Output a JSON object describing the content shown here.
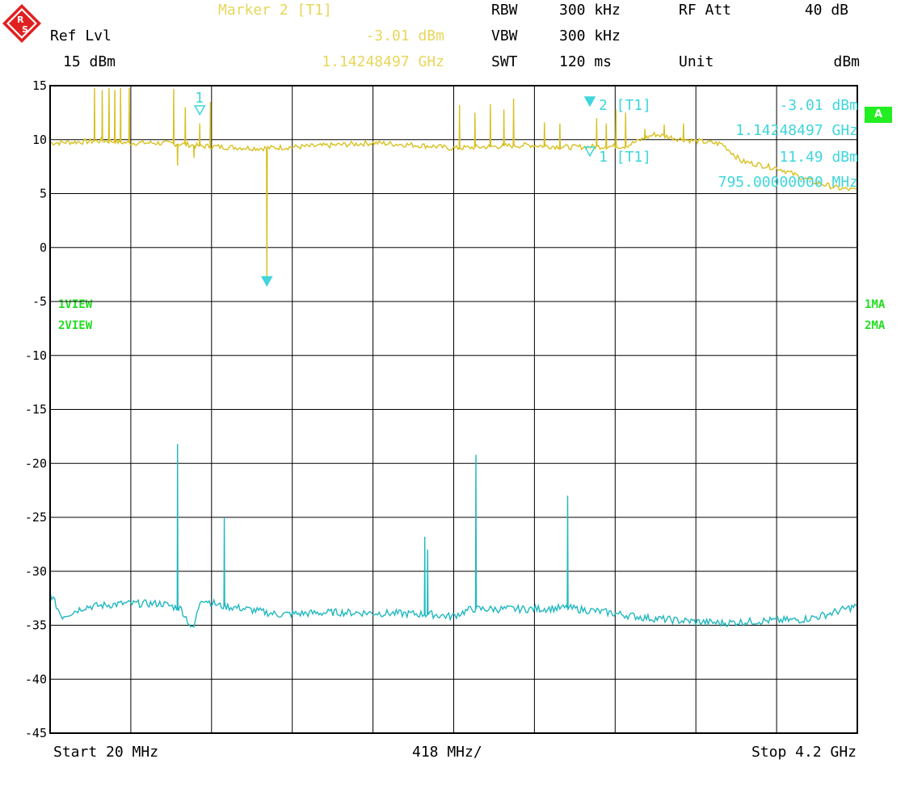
{
  "header": {
    "marker_title": "Marker 2 [T1]",
    "marker_level": "-3.01 dBm",
    "marker_freq": "1.14248497 GHz",
    "ref_lvl_label": "Ref Lvl",
    "ref_lvl_value": "15 dBm",
    "rbw_label": "RBW",
    "rbw_value": "300 kHz",
    "vbw_label": "VBW",
    "vbw_value": "300 kHz",
    "swt_label": "SWT",
    "swt_value": "120 ms",
    "rfatt_label": "RF Att",
    "rfatt_value": "40 dB",
    "unit_label": "Unit",
    "unit_value": "dBm"
  },
  "footer": {
    "start": "Start 20 MHz",
    "span_per_div": "418 MHz/",
    "stop": "Stop 4.2 GHz"
  },
  "side": {
    "trace1_view": "1VIEW",
    "trace2_view": "2VIEW",
    "trace1_mode": "1MA",
    "trace2_mode": "2MA",
    "badge": "A"
  },
  "markers": {
    "m2_label": "2 [T1]",
    "m2_level": "-3.01 dBm",
    "m2_freq": "1.14248497 GHz",
    "m1_label": "1 [T1]",
    "m1_level": "11.49 dBm",
    "m1_freq": "795.00000000 MHz",
    "m1_flag": "1",
    "m2_flag": "2"
  },
  "colors": {
    "trace1": "#d8c020",
    "trace2": "#20b8c0",
    "marker": "#3fd6dc",
    "header_marker": "#e8d65a",
    "badge": "#22ee22"
  },
  "logo_icon": "rohde-schwarz-logo",
  "chart_data": {
    "type": "line",
    "x_unit": "MHz",
    "y_unit": "dBm",
    "xlim": [
      20,
      4200
    ],
    "ylim": [
      -45,
      15
    ],
    "y_ticks": [
      15,
      10,
      5,
      0,
      -5,
      -10,
      -15,
      -20,
      -25,
      -30,
      -35,
      -40,
      -45
    ],
    "x_divisions": 10,
    "grid": true,
    "series": [
      {
        "name": "1VIEW",
        "baseline": [
          [
            20,
            9.7
          ],
          [
            180,
            9.8
          ],
          [
            300,
            9.9
          ],
          [
            420,
            9.7
          ],
          [
            560,
            9.7
          ],
          [
            700,
            9.6
          ],
          [
            800,
            9.4
          ],
          [
            1100,
            9.2
          ],
          [
            1400,
            9.4
          ],
          [
            1700,
            9.7
          ],
          [
            2000,
            9.4
          ],
          [
            2100,
            9.2
          ],
          [
            2500,
            9.5
          ],
          [
            2700,
            9.3
          ],
          [
            3000,
            9.4
          ],
          [
            3150,
            10.5
          ],
          [
            3300,
            10.0
          ],
          [
            3500,
            9.6
          ],
          [
            3600,
            8.0
          ],
          [
            3800,
            7.3
          ],
          [
            3950,
            6.2
          ],
          [
            4100,
            5.5
          ],
          [
            4200,
            5.3
          ]
        ],
        "spikes": [
          [
            250,
            14.8
          ],
          [
            290,
            14.6
          ],
          [
            325,
            14.8
          ],
          [
            355,
            14.6
          ],
          [
            385,
            14.8
          ],
          [
            430,
            14.8
          ],
          [
            660,
            14.7
          ],
          [
            720,
            13.0
          ],
          [
            795,
            11.5
          ],
          [
            850,
            13.5
          ],
          [
            2140,
            13.2
          ],
          [
            2220,
            12.5
          ],
          [
            2300,
            13.3
          ],
          [
            2370,
            12.8
          ],
          [
            2420,
            13.8
          ],
          [
            2580,
            11.6
          ],
          [
            2660,
            11.5
          ],
          [
            2850,
            12.0
          ],
          [
            2900,
            11.5
          ],
          [
            2950,
            12.8
          ],
          [
            3000,
            12.5
          ],
          [
            3100,
            11.0
          ],
          [
            3200,
            11.4
          ],
          [
            3300,
            11.5
          ]
        ],
        "dips": [
          [
            680,
            7.6
          ],
          [
            765,
            8.3
          ],
          [
            1142.5,
            -3.01
          ]
        ]
      },
      {
        "name": "2VIEW",
        "baseline": [
          [
            20,
            -32.0
          ],
          [
            80,
            -34.2
          ],
          [
            200,
            -33.3
          ],
          [
            400,
            -33.0
          ],
          [
            600,
            -33.0
          ],
          [
            700,
            -33.5
          ],
          [
            760,
            -35.5
          ],
          [
            800,
            -32.5
          ],
          [
            900,
            -33.2
          ],
          [
            1000,
            -33.4
          ],
          [
            1200,
            -34.0
          ],
          [
            1500,
            -33.8
          ],
          [
            1800,
            -33.9
          ],
          [
            2000,
            -34.0
          ],
          [
            2100,
            -34.2
          ],
          [
            2200,
            -33.5
          ],
          [
            2500,
            -33.5
          ],
          [
            2700,
            -33.4
          ],
          [
            2900,
            -33.8
          ],
          [
            3100,
            -34.3
          ],
          [
            3300,
            -34.6
          ],
          [
            3500,
            -34.8
          ],
          [
            3700,
            -34.6
          ],
          [
            3900,
            -34.5
          ],
          [
            4000,
            -34.2
          ],
          [
            4200,
            -33.2
          ]
        ],
        "spikes": [
          [
            680,
            -18.2
          ],
          [
            922,
            -25.0
          ],
          [
            1960,
            -26.8
          ],
          [
            1975,
            -28.0
          ],
          [
            2225,
            -19.2
          ],
          [
            2700,
            -23.0
          ]
        ]
      }
    ],
    "markers": [
      {
        "name": "1 [T1]",
        "x": 795,
        "y": 11.49
      },
      {
        "name": "2 [T1]",
        "x": 1142.48497,
        "y": -3.01
      }
    ]
  }
}
